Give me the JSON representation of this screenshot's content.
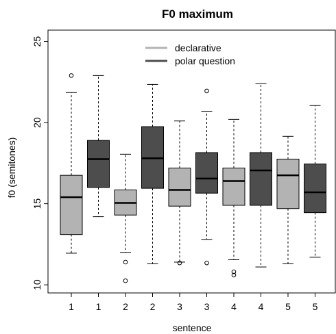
{
  "chart_data": {
    "type": "boxplot",
    "title": "F0 maximum",
    "xlabel": "sentence",
    "ylabel": "f0 (semitones)",
    "ylim": [
      9.5,
      25.7
    ],
    "yticks": [
      10,
      15,
      20,
      25
    ],
    "grid": false,
    "legend": {
      "position": "top-center",
      "items": [
        {
          "label": "declarative",
          "color": "#b3b3b3"
        },
        {
          "label": "polar question",
          "color": "#4d4d4d"
        }
      ]
    },
    "boxes": [
      {
        "label": "1",
        "group": "declarative",
        "whisker_low": 11.95,
        "q1": 13.1,
        "median": 15.4,
        "q3": 16.75,
        "whisker_high": 21.85,
        "outliers": [
          22.9
        ]
      },
      {
        "label": "1",
        "group": "polar question",
        "whisker_low": 14.2,
        "q1": 16.0,
        "median": 17.75,
        "q3": 18.9,
        "whisker_high": 22.9,
        "outliers": []
      },
      {
        "label": "2",
        "group": "declarative",
        "whisker_low": 12.0,
        "q1": 14.3,
        "median": 15.05,
        "q3": 15.85,
        "whisker_high": 18.05,
        "outliers": [
          11.4,
          10.25
        ]
      },
      {
        "label": "2",
        "group": "polar question",
        "whisker_low": 11.3,
        "q1": 15.95,
        "median": 17.8,
        "q3": 19.75,
        "whisker_high": 22.35,
        "outliers": []
      },
      {
        "label": "3",
        "group": "declarative",
        "whisker_low": 11.4,
        "q1": 14.85,
        "median": 15.85,
        "q3": 17.2,
        "whisker_high": 20.1,
        "outliers": [
          11.35
        ]
      },
      {
        "label": "3",
        "group": "polar question",
        "whisker_low": 12.8,
        "q1": 15.65,
        "median": 16.55,
        "q3": 18.15,
        "whisker_high": 20.7,
        "outliers": [
          11.35,
          21.95
        ]
      },
      {
        "label": "4",
        "group": "declarative",
        "whisker_low": 11.55,
        "q1": 14.9,
        "median": 16.4,
        "q3": 17.2,
        "whisker_high": 20.2,
        "outliers": [
          10.8,
          10.6
        ]
      },
      {
        "label": "4",
        "group": "polar question",
        "whisker_low": 11.1,
        "q1": 14.9,
        "median": 17.05,
        "q3": 18.15,
        "whisker_high": 22.4,
        "outliers": []
      },
      {
        "label": "5",
        "group": "declarative",
        "whisker_low": 11.3,
        "q1": 14.7,
        "median": 16.75,
        "q3": 17.75,
        "whisker_high": 19.15,
        "outliers": []
      },
      {
        "label": "5",
        "group": "polar question",
        "whisker_low": 11.7,
        "q1": 14.45,
        "median": 15.7,
        "q3": 17.45,
        "whisker_high": 21.05,
        "outliers": []
      }
    ]
  }
}
